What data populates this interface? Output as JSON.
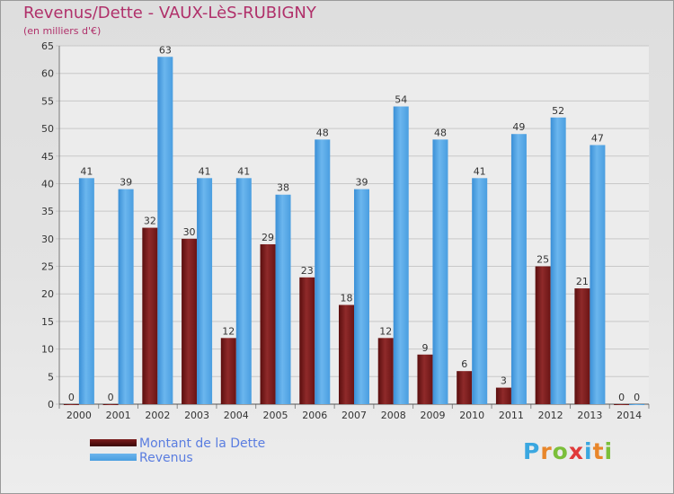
{
  "chart_data": {
    "type": "bar",
    "title": "Revenus/Dette - VAUX-LèS-RUBIGNY",
    "subtitle": "(en milliers d'€)",
    "categories": [
      "2000",
      "2001",
      "2002",
      "2003",
      "2004",
      "2005",
      "2006",
      "2007",
      "2008",
      "2009",
      "2010",
      "2011",
      "2012",
      "2013",
      "2014"
    ],
    "series": [
      {
        "name": "Montant de la Dette",
        "color": "#7b1c1c",
        "values": [
          0,
          0,
          32,
          30,
          12,
          29,
          23,
          18,
          12,
          9,
          6,
          3,
          25,
          21,
          0
        ]
      },
      {
        "name": "Revenus",
        "color": "#4a9ee0",
        "values": [
          41,
          39,
          63,
          41,
          41,
          38,
          48,
          39,
          54,
          48,
          41,
          49,
          52,
          47,
          0
        ]
      }
    ],
    "ylim": [
      0,
      65
    ],
    "yticks": [
      0,
      5,
      10,
      15,
      20,
      25,
      30,
      35,
      40,
      45,
      50,
      55,
      60,
      65
    ],
    "grid": true,
    "legend_position": "bottom-left"
  },
  "legend": {
    "items": [
      {
        "label": "Montant de la Dette"
      },
      {
        "label": "Revenus"
      }
    ]
  },
  "logo": {
    "letters": [
      "P",
      "r",
      "o",
      "x",
      "i",
      "t",
      "i"
    ],
    "colors": [
      "#3aa7e0",
      "#e8862a",
      "#7bbf3a",
      "#e03a3a",
      "#3aa7e0",
      "#e8862a",
      "#7bbf3a"
    ]
  }
}
